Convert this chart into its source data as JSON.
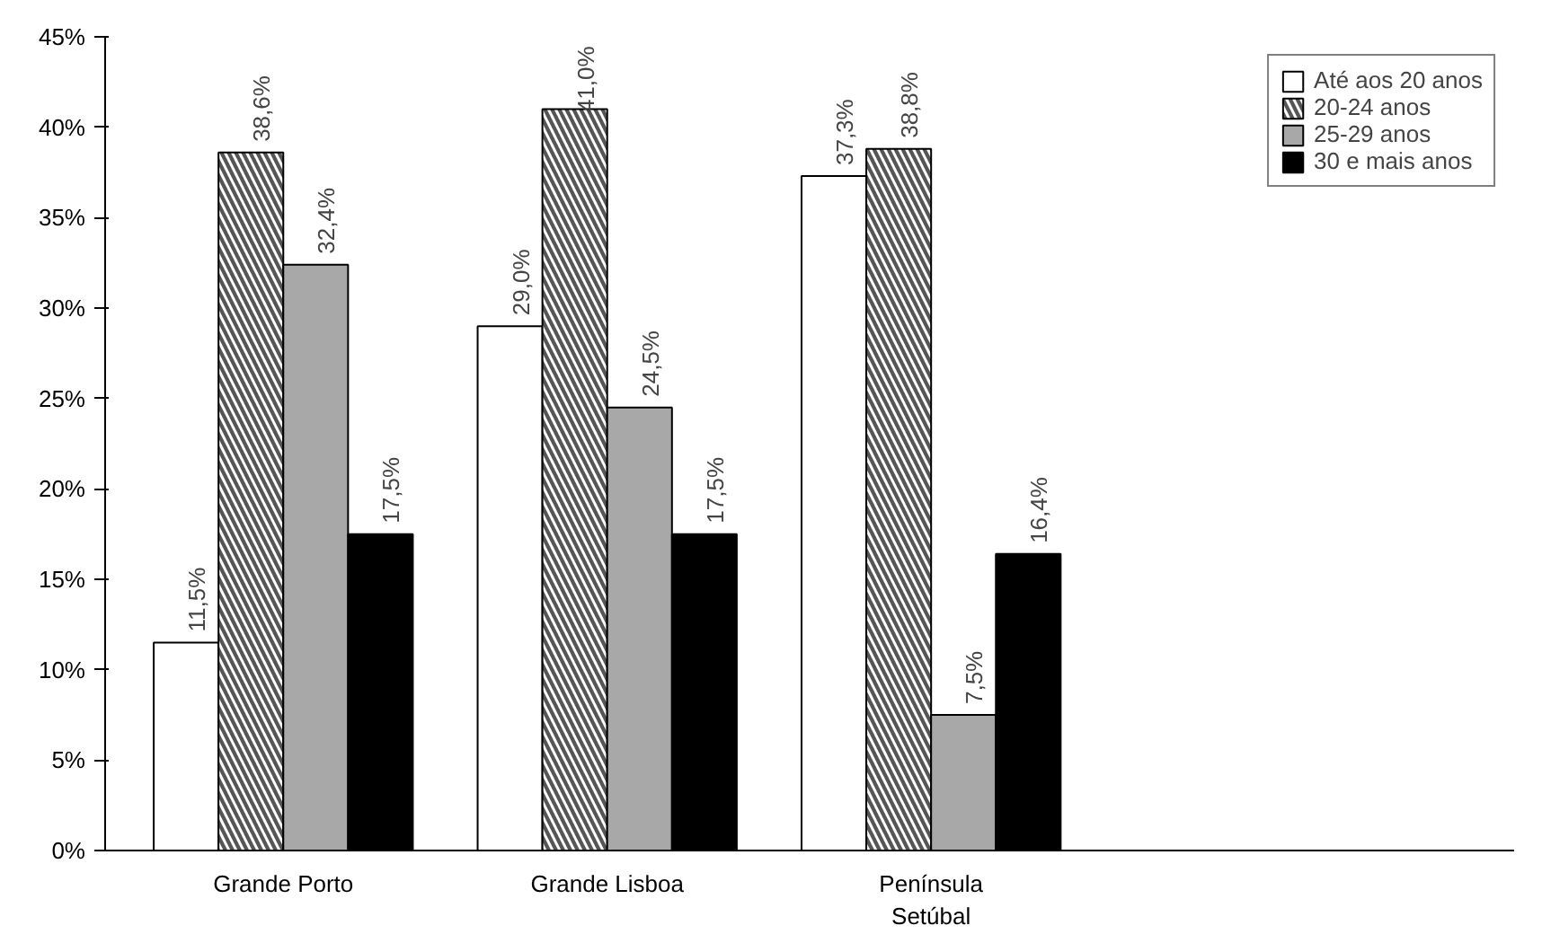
{
  "chart_data": {
    "type": "bar",
    "categories": [
      "Grande Porto",
      "Grande Lisboa",
      "Península\nSetúbal"
    ],
    "series": [
      {
        "name": "Até aos 20 anos",
        "color": "#ffffff",
        "values": [
          11.5,
          29.0,
          37.3
        ],
        "value_labels": [
          "11,5%",
          "29,0%",
          "37,3%"
        ]
      },
      {
        "name": "20-24 anos",
        "color": "#555555",
        "values": [
          38.6,
          41.0,
          38.8
        ],
        "value_labels": [
          "38,6%",
          "41,0%",
          "38,8%"
        ]
      },
      {
        "name": "25-29 anos",
        "color": "#a8a8a8",
        "values": [
          32.4,
          24.5,
          7.5
        ],
        "value_labels": [
          "32,4%",
          "24,5%",
          "7,5%"
        ]
      },
      {
        "name": "30 e mais anos",
        "color": "#000000",
        "values": [
          17.5,
          17.5,
          16.4
        ],
        "value_labels": [
          "17,5%",
          "17,5%",
          "16,4%"
        ]
      }
    ],
    "ylim": [
      0,
      45
    ],
    "yticks": [
      {
        "value": 0,
        "label": "0%"
      },
      {
        "value": 5,
        "label": "5%"
      },
      {
        "value": 10,
        "label": "10%"
      },
      {
        "value": 15,
        "label": "15%"
      },
      {
        "value": 20,
        "label": "20%"
      },
      {
        "value": 25,
        "label": "25%"
      },
      {
        "value": 30,
        "label": "30%"
      },
      {
        "value": 35,
        "label": "35%"
      },
      {
        "value": 40,
        "label": "40%"
      },
      {
        "value": 45,
        "label": "45%"
      }
    ],
    "grid": false,
    "legend": "top right"
  }
}
